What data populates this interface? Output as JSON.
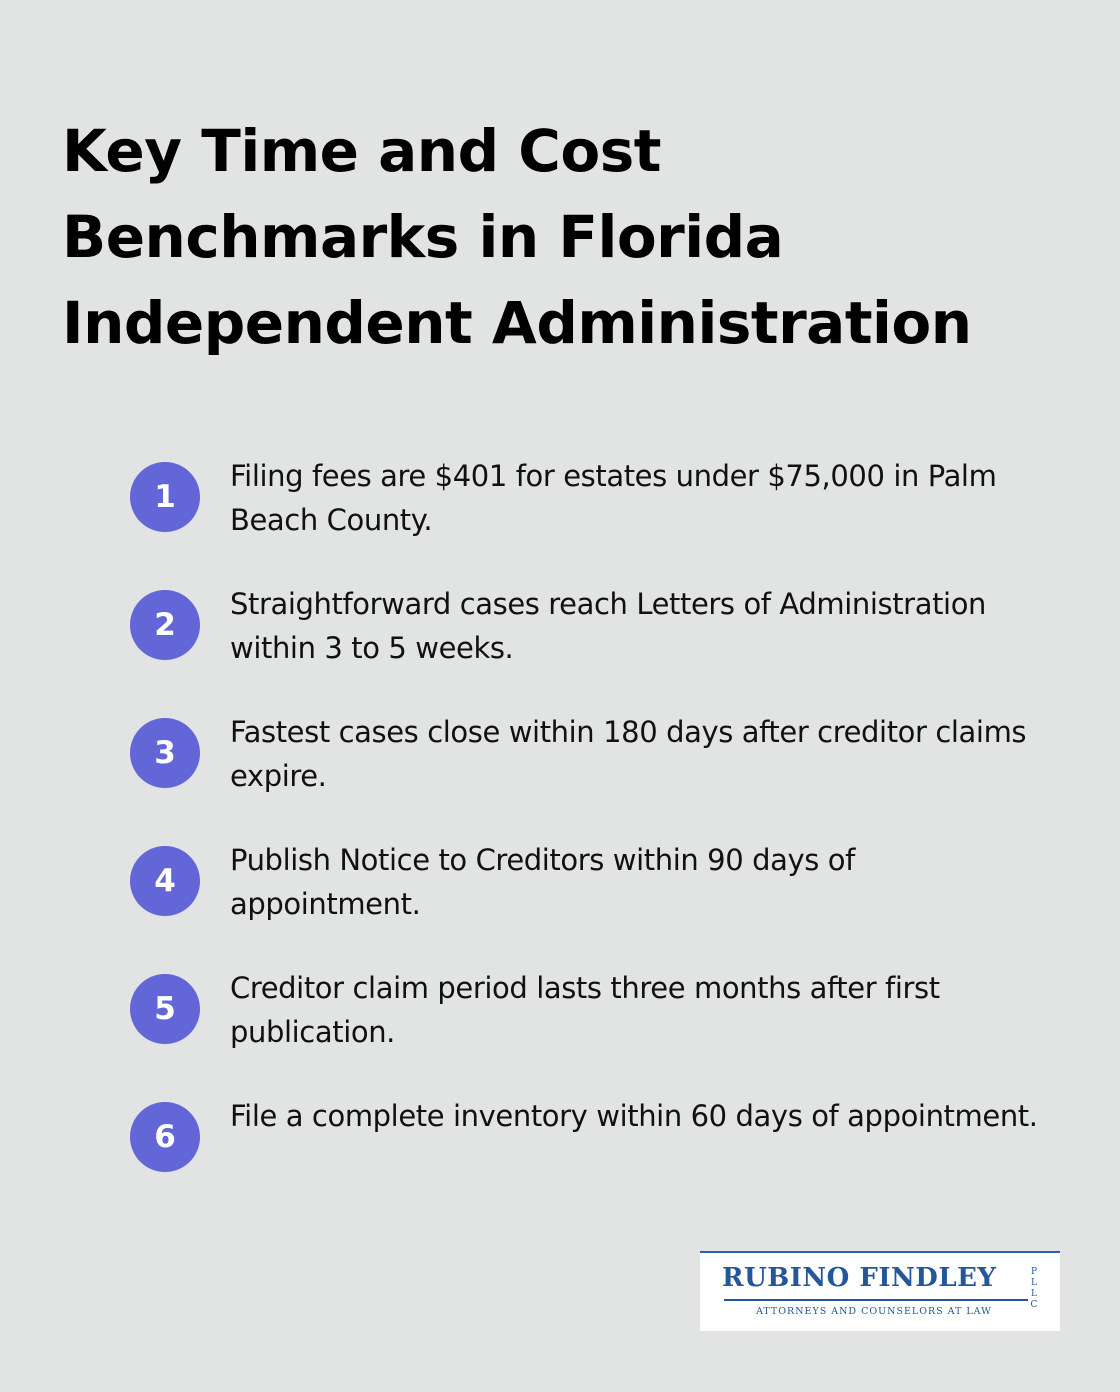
{
  "title": "Key Time and Cost Benchmarks in Florida Independent Administration",
  "accent_color": "#6366d6",
  "items": [
    {
      "number": "1",
      "text": "Filing fees are $401 for estates under $75,000 in Palm Beach County."
    },
    {
      "number": "2",
      "text": "Straightforward cases reach Letters of Administration within 3 to 5 weeks."
    },
    {
      "number": "3",
      "text": "Fastest cases close within 180 days after creditor claims expire."
    },
    {
      "number": "4",
      "text": "Publish Notice to Creditors within 90 days of appointment."
    },
    {
      "number": "5",
      "text": "Creditor claim period lasts three months after first publication."
    },
    {
      "number": "6",
      "text": "File a complete inventory within 60 days of appointment."
    }
  ],
  "logo": {
    "name": "RUBINO FINDLEY",
    "suffix": "PLLC",
    "tagline": "ATTORNEYS AND COUNSELORS AT LAW"
  }
}
